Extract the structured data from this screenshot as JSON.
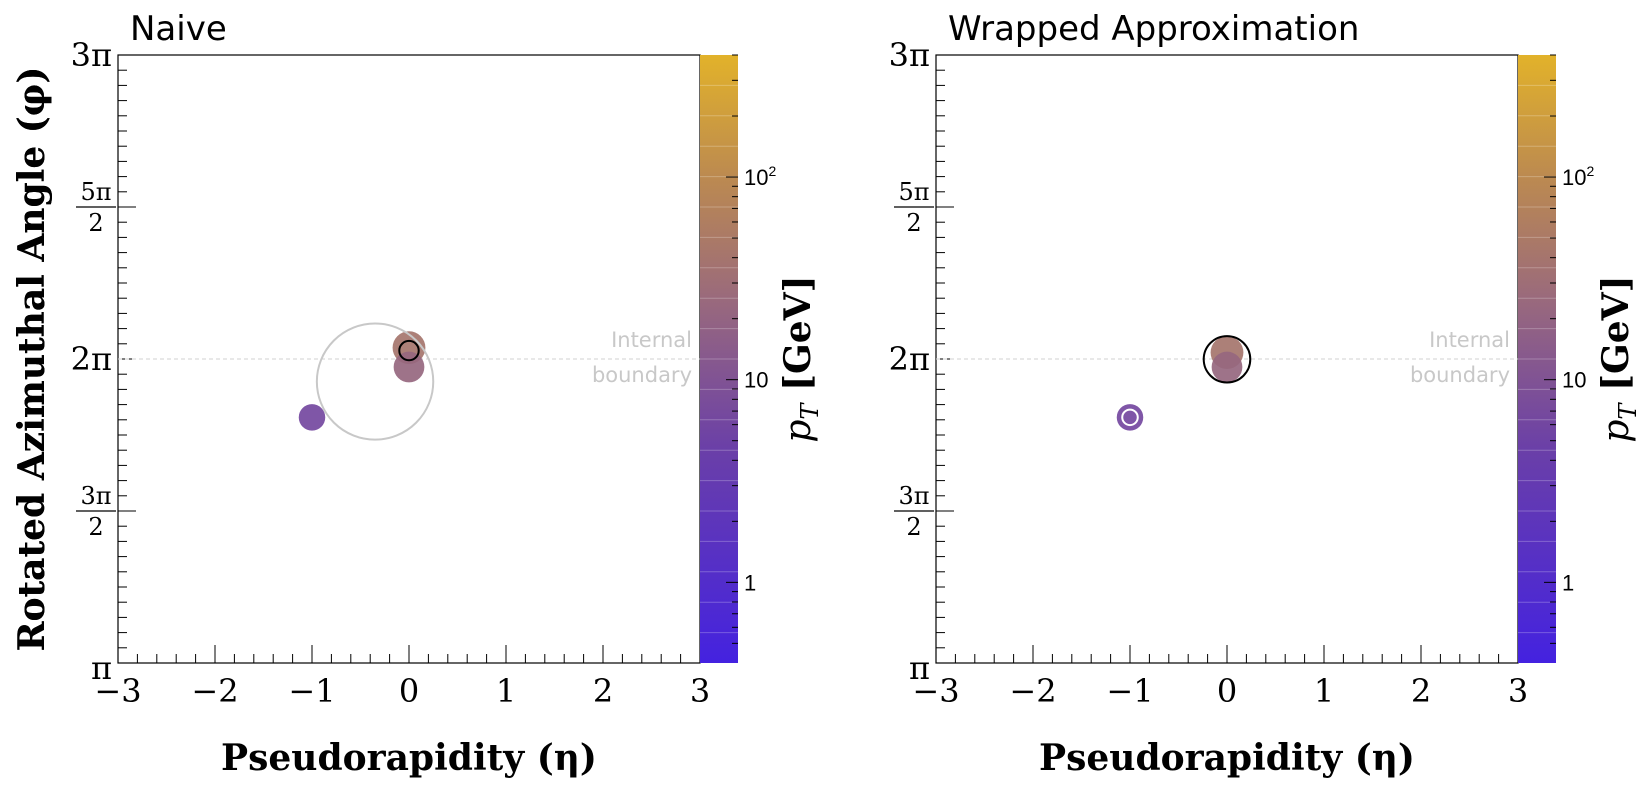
{
  "chart_data": [
    {
      "type": "scatter",
      "title": "Naive",
      "xlabel": "Pseudorapidity (η)",
      "ylabel": "Rotated Azimuthal Angle (φ)",
      "xlim": [
        -3,
        3
      ],
      "ylim": [
        3.14159,
        9.42478
      ],
      "x_tick_labels": [
        "−3",
        "−2",
        "−1",
        "0",
        "1",
        "2",
        "3"
      ],
      "y_tick_labels": [
        "π",
        "3π/2",
        "2π",
        "5π/2",
        "3π"
      ],
      "boundary": {
        "y": 6.28319,
        "label_line1": "Internal",
        "label_line2": "boundary"
      },
      "colorbar": {
        "label": "p_T [GeV]",
        "tick_labels": [
          "1",
          "10",
          "10^2"
        ],
        "scale": "log",
        "range": [
          0.4,
          400
        ]
      },
      "particles": [
        {
          "eta": -1.0,
          "phi": 5.68,
          "pt": 6.5
        },
        {
          "eta": 0.0,
          "phi": 6.4,
          "pt": 40
        },
        {
          "eta": 0.0,
          "phi": 6.2,
          "pt": 22
        }
      ],
      "jets": [
        {
          "eta": -0.35,
          "phi": 6.05,
          "R": 0.6,
          "color": "#c8c8c8"
        },
        {
          "eta": 0.0,
          "phi": 6.37,
          "R": 0.1,
          "color": "#000000"
        }
      ]
    },
    {
      "type": "scatter",
      "title": "Wrapped Approximation",
      "xlabel": "Pseudorapidity (η)",
      "ylabel": "Rotated Azimuthal Angle (φ)",
      "xlim": [
        -3,
        3
      ],
      "ylim": [
        3.14159,
        9.42478
      ],
      "x_tick_labels": [
        "−3",
        "−2",
        "−1",
        "0",
        "1",
        "2",
        "3"
      ],
      "y_tick_labels": [
        "π",
        "3π/2",
        "2π",
        "5π/2",
        "3π"
      ],
      "boundary": {
        "y": 6.28319,
        "label_line1": "Internal",
        "label_line2": "boundary"
      },
      "colorbar": {
        "label": "p_T [GeV]",
        "tick_labels": [
          "1",
          "10",
          "10^2"
        ],
        "scale": "log",
        "range": [
          0.4,
          400
        ]
      },
      "particles": [
        {
          "eta": -1.0,
          "phi": 5.68,
          "pt": 6.5
        },
        {
          "eta": 0.0,
          "phi": 6.35,
          "pt": 40
        },
        {
          "eta": 0.0,
          "phi": 6.2,
          "pt": 22
        }
      ],
      "jets": [
        {
          "eta": -1.0,
          "phi": 5.68,
          "R": 0.08,
          "color": "#ffffff"
        },
        {
          "eta": 0.0,
          "phi": 6.28,
          "R": 0.24,
          "color": "#000000"
        }
      ]
    }
  ]
}
